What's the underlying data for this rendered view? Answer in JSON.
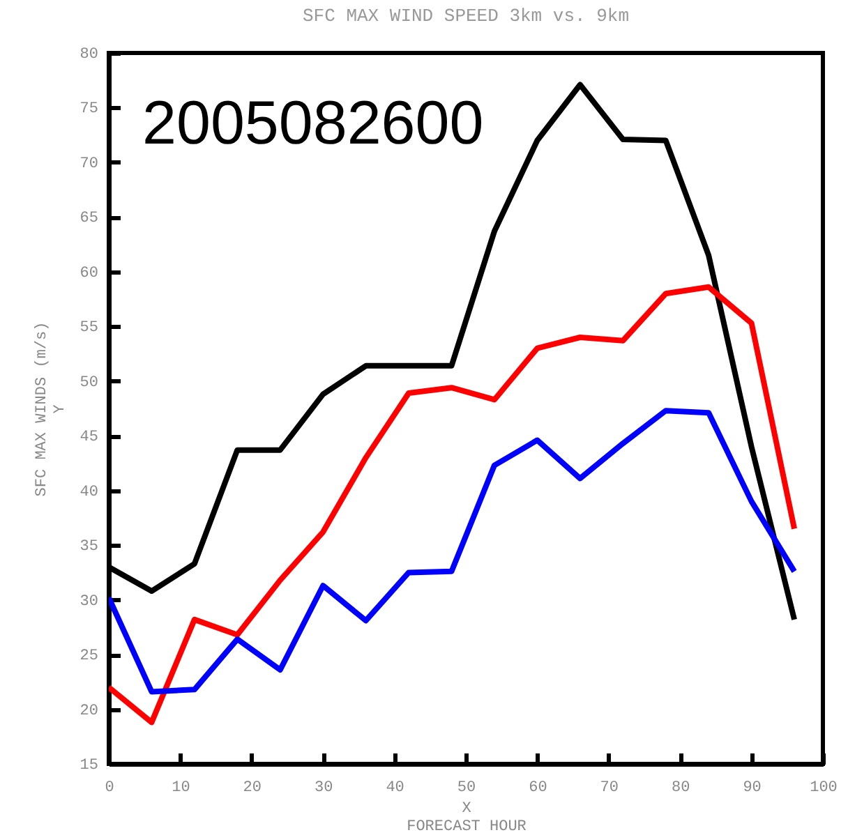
{
  "chart_data": {
    "type": "line",
    "title": "SFC MAX WIND SPEED 3km vs. 9km",
    "xlabel": "X\nFORECAST HOUR",
    "ylabel": "SFC MAX WINDS (m/s)\nY",
    "annotations": [
      "2005082600"
    ],
    "x": [
      0,
      6,
      12,
      18,
      24,
      30,
      36,
      42,
      48,
      54,
      60,
      66,
      72,
      78,
      84,
      90,
      96
    ],
    "series": [
      {
        "color": "#000000",
        "values": [
          33,
          30.8,
          33.3,
          43.7,
          43.7,
          48.8,
          51.4,
          51.4,
          51.4,
          63.7,
          72,
          77.1,
          72.1,
          72,
          61.5,
          44,
          28.2
        ]
      },
      {
        "color": "#ff0000",
        "values": [
          22,
          18.8,
          28.2,
          26.8,
          31.8,
          36.2,
          43,
          48.9,
          49.4,
          48.3,
          53,
          54,
          53.7,
          58,
          58.6,
          55.3,
          36.5
        ]
      },
      {
        "color": "#0000ff",
        "values": [
          30.2,
          21.6,
          21.8,
          26.4,
          23.6,
          31.3,
          28.1,
          32.5,
          32.6,
          42.3,
          44.6,
          41.1,
          44.3,
          47.3,
          47.1,
          39,
          32.6
        ]
      }
    ],
    "xlim": [
      0,
      100
    ],
    "xticks": [
      0,
      10,
      20,
      30,
      40,
      50,
      60,
      70,
      80,
      90,
      100
    ],
    "ylim": [
      15,
      80
    ],
    "yticks": [
      15,
      20,
      25,
      30,
      35,
      40,
      45,
      50,
      55,
      60,
      65,
      70,
      75,
      80
    ],
    "grid": false,
    "legend": false,
    "marker": "none",
    "line_style": "solid"
  }
}
